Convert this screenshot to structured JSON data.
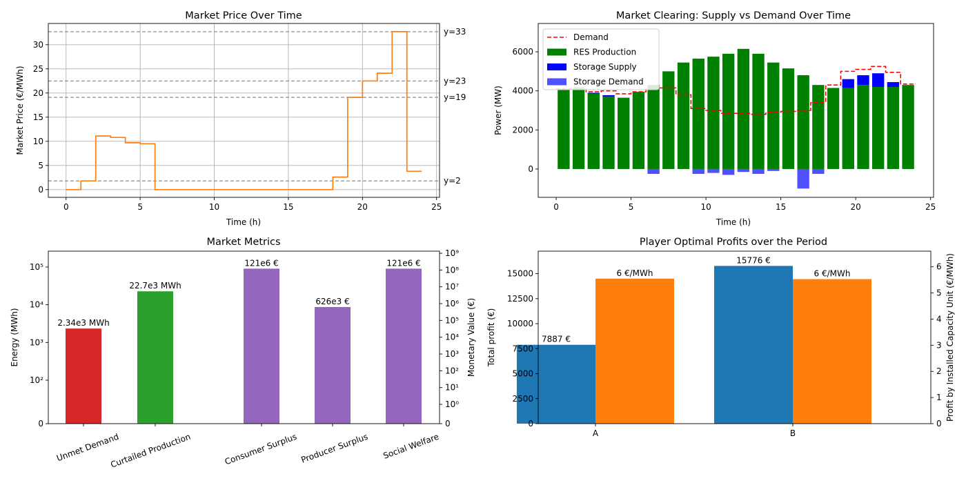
{
  "chart_data": [
    {
      "type": "line",
      "title": "Market Price Over Time",
      "xlabel": "Time (h)",
      "ylabel": "Market Price (€/MWh)",
      "xlim": [
        -1.2,
        25.2
      ],
      "ylim": [
        -1.6,
        34.4
      ],
      "xticks": [
        0,
        5,
        10,
        15,
        20,
        25
      ],
      "yticks": [
        0,
        5,
        10,
        15,
        20,
        25,
        30
      ],
      "grid": true,
      "line_style": "step-post",
      "line_color": "#ff7f0e",
      "x": [
        0,
        1,
        2,
        3,
        4,
        5,
        6,
        7,
        8,
        9,
        10,
        11,
        12,
        13,
        14,
        15,
        16,
        17,
        18,
        19,
        20,
        21,
        22,
        23,
        24
      ],
      "y": [
        0,
        1.8,
        11.1,
        10.8,
        9.7,
        9.5,
        0,
        0,
        0,
        0,
        0,
        0,
        0,
        0,
        0,
        0,
        0,
        0,
        2.6,
        19.1,
        22.5,
        24.1,
        32.7,
        3.8,
        3.8
      ],
      "reference_lines": [
        {
          "value": 32.7,
          "label": "y=33"
        },
        {
          "value": 22.5,
          "label": "y=23"
        },
        {
          "value": 19.1,
          "label": "y=19"
        },
        {
          "value": 1.8,
          "label": "y=2"
        }
      ],
      "reference_line_color": "#808080"
    },
    {
      "type": "bar",
      "title": "Market Clearing: Supply vs Demand Over Time",
      "xlabel": "Time (h)",
      "ylabel": "Power (MW)",
      "xlim": [
        -1.2,
        25.2
      ],
      "ylim": [
        -1450,
        7450
      ],
      "xticks": [
        0,
        5,
        10,
        15,
        20,
        25
      ],
      "yticks": [
        0,
        2000,
        4000,
        6000
      ],
      "grid": false,
      "legend_position": "top-left",
      "x": [
        0.5,
        1.5,
        2.5,
        3.5,
        4.5,
        5.5,
        6.5,
        7.5,
        8.5,
        9.5,
        10.5,
        11.5,
        12.5,
        13.5,
        14.5,
        15.5,
        16.5,
        17.5,
        18.5,
        19.5,
        20.5,
        21.5,
        22.5,
        23.5
      ],
      "series": [
        {
          "name": "Demand",
          "kind": "dashed-step",
          "color": "#ff0000",
          "values": [
            4100,
            4150,
            3950,
            4000,
            3850,
            3950,
            4150,
            4150,
            3800,
            3100,
            3000,
            2850,
            2850,
            2800,
            2900,
            2950,
            3000,
            3400,
            4300,
            5000,
            5100,
            5250,
            4950,
            4350
          ]
        },
        {
          "name": "RES Production",
          "kind": "bar",
          "color": "#008000",
          "values": [
            4100,
            4150,
            3850,
            3700,
            3650,
            3950,
            4300,
            5000,
            5450,
            5650,
            5750,
            5900,
            6150,
            5900,
            5450,
            5150,
            4800,
            4300,
            4150,
            4150,
            4300,
            4200,
            4200,
            4300
          ]
        },
        {
          "name": "Storage Supply",
          "kind": "bar-stacked",
          "color": "#0000ff",
          "values": [
            0,
            0,
            50,
            80,
            0,
            0,
            0,
            0,
            0,
            0,
            0,
            0,
            0,
            0,
            0,
            0,
            0,
            0,
            0,
            450,
            500,
            700,
            250,
            0
          ]
        },
        {
          "name": "Storage Demand",
          "kind": "bar-negative",
          "color": "#5050ff",
          "values": [
            0,
            0,
            0,
            0,
            0,
            0,
            -250,
            0,
            0,
            -250,
            -200,
            -300,
            -150,
            -250,
            -100,
            0,
            -1000,
            -250,
            0,
            0,
            0,
            0,
            0,
            0
          ]
        }
      ]
    },
    {
      "type": "bar",
      "title": "Market Metrics",
      "ylabel": "Energy (MWh)",
      "y2label": "Monetary Value (€)",
      "yscale": "symlog",
      "grid": false,
      "categories": [
        "Unmet Demand",
        "Curtailed Production",
        "Consumer Surplus",
        "Producer Surplus",
        "Social Welfare"
      ],
      "values": [
        2340,
        22700,
        121000000,
        626000,
        121000000
      ],
      "axis": [
        "left",
        "left",
        "right",
        "right",
        "right"
      ],
      "colors": [
        "#d62728",
        "#2ca02c",
        "#9467bd",
        "#9467bd",
        "#9467bd"
      ],
      "data_labels": [
        "2.34e3 MWh",
        "22.7e3 MWh",
        "121e6 €",
        "626e3 €",
        "121e6 €"
      ],
      "left_ticks": [
        "0",
        "10²",
        "10³",
        "10⁴",
        "10⁵"
      ],
      "right_ticks": [
        "0",
        "10⁰",
        "10¹",
        "10²",
        "10³",
        "10⁴",
        "10⁵",
        "10⁶",
        "10⁷",
        "10⁸",
        "10⁹"
      ]
    },
    {
      "type": "bar",
      "title": "Player Optimal Profits over the Period",
      "ylabel": "Total profit (€)",
      "y2label": "Profit by Installed Capacity Unit (€/MWh)",
      "categories": [
        "A",
        "B"
      ],
      "grid": false,
      "ylim": [
        0,
        17250
      ],
      "y2lim": [
        0,
        6.6
      ],
      "yticks": [
        0,
        2500,
        5000,
        7500,
        10000,
        12500,
        15000
      ],
      "y2ticks": [
        0,
        1,
        2,
        3,
        4,
        5,
        6
      ],
      "series": [
        {
          "axis": "left",
          "color": "#1f77b4",
          "values": [
            7887,
            15776
          ],
          "data_labels": [
            "7887 €",
            "15776 €"
          ]
        },
        {
          "axis": "right",
          "color": "#ff7f0e",
          "values": [
            5.55,
            5.53
          ],
          "data_labels": [
            "6 €/MWh",
            "6 €/MWh"
          ]
        }
      ]
    }
  ]
}
